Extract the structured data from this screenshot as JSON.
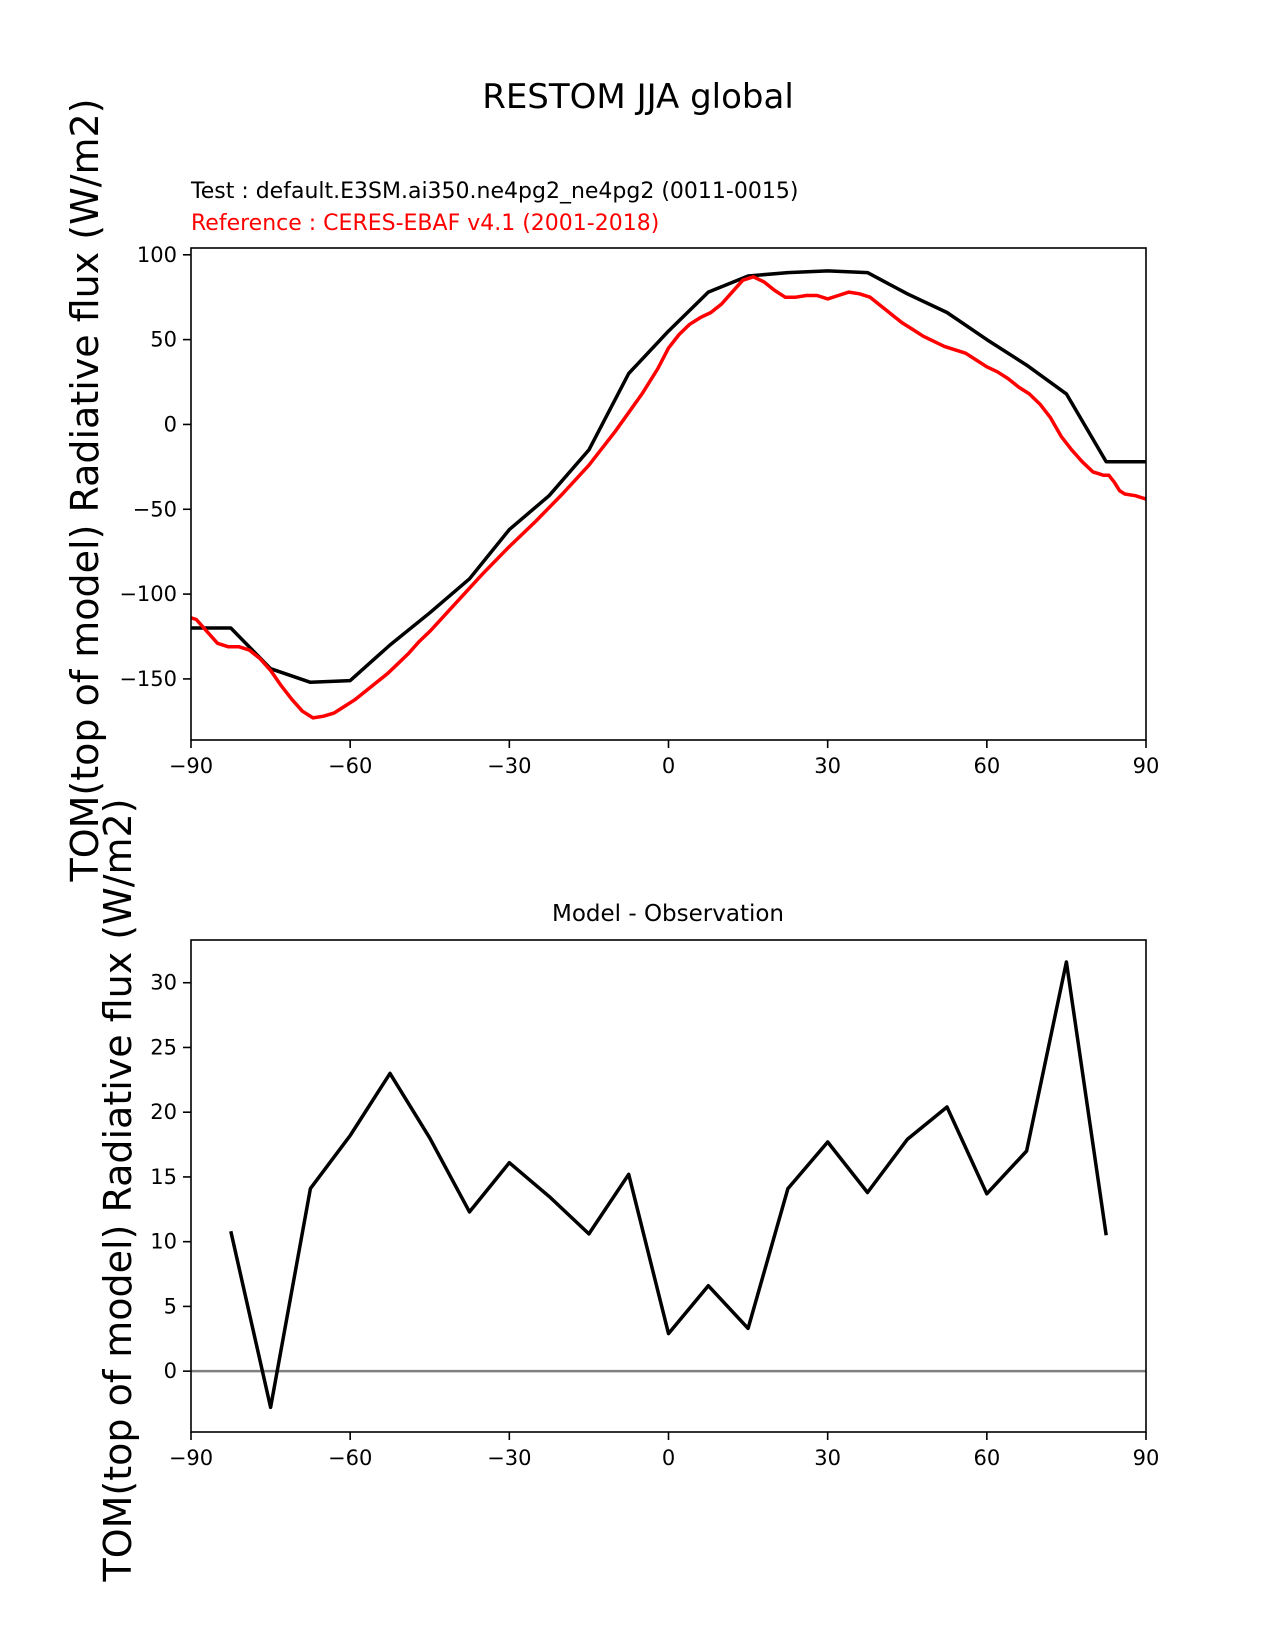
{
  "figure": {
    "title": "RESTOM JJA global"
  },
  "chart_data": [
    {
      "type": "line",
      "test_label": "Test : default.E3SM.ai350.ne4pg2_ne4pg2 (0011-0015)",
      "reference_label": "Reference : CERES-EBAF v4.1 (2001-2018)",
      "ylabel": "TOM(top of model) Radiative flux (W/m2)",
      "xlim": [
        -90,
        90
      ],
      "ylim": [
        -186,
        104
      ],
      "xticks": [
        -90,
        -60,
        -30,
        0,
        30,
        60,
        90
      ],
      "yticks": [
        100,
        50,
        0,
        -50,
        -100,
        -150
      ],
      "grid": false,
      "colors": {
        "test": "#000000",
        "reference": "#ff0000"
      },
      "series": [
        {
          "role": "test",
          "x": [
            -90,
            -82.5,
            -75,
            -67.5,
            -60,
            -52.5,
            -45,
            -37.5,
            -30,
            -22.5,
            -15,
            -7.5,
            0,
            7.5,
            15,
            22.5,
            30,
            37.5,
            45,
            52.5,
            60,
            67.5,
            75,
            82.5,
            90
          ],
          "y": [
            -120,
            -120,
            -144,
            -152,
            -151,
            -130,
            -111,
            -91,
            -62,
            -42,
            -15,
            30,
            55,
            78,
            87.5,
            89.5,
            90.5,
            89.5,
            77,
            66,
            50,
            35,
            18,
            -22,
            -22
          ]
        },
        {
          "role": "reference",
          "x": [
            -90,
            -89,
            -87,
            -85,
            -83,
            -81,
            -79,
            -77,
            -75,
            -73,
            -71,
            -69,
            -67,
            -65,
            -63,
            -61,
            -59,
            -57,
            -55,
            -53,
            -51,
            -49,
            -47,
            -45,
            -40,
            -35,
            -30,
            -25,
            -20,
            -15,
            -10,
            -5,
            -2,
            0,
            2,
            4,
            6,
            8,
            10,
            12,
            14,
            16,
            18,
            20,
            22,
            24,
            26,
            28,
            30,
            32,
            34,
            36,
            38,
            40,
            42,
            44,
            46,
            48,
            50,
            52,
            54,
            56,
            58,
            60,
            62,
            64,
            66,
            68,
            70,
            72,
            74,
            76,
            78,
            80,
            81,
            82,
            83,
            84,
            85,
            86,
            88,
            90
          ],
          "y": [
            -114,
            -115,
            -122,
            -129,
            -131,
            -131,
            -133,
            -138,
            -145,
            -154,
            -162,
            -169,
            -173,
            -172,
            -170,
            -166,
            -162,
            -157,
            -152,
            -147,
            -141,
            -135,
            -128,
            -122,
            -105,
            -88,
            -72,
            -57,
            -41,
            -24,
            -4,
            18,
            33,
            45,
            53,
            59,
            63,
            66,
            71,
            78,
            85,
            87,
            84,
            79,
            75,
            75,
            76,
            76,
            74,
            76,
            78,
            77,
            75,
            70,
            65,
            60,
            56,
            52,
            49,
            46,
            44,
            42,
            38,
            34,
            31,
            27,
            22,
            18,
            12,
            4,
            -7,
            -15,
            -22,
            -28,
            -29,
            -30,
            -30,
            -34,
            -39,
            -41,
            -42,
            -44
          ]
        }
      ]
    },
    {
      "type": "line",
      "title": "Model - Observation",
      "ylabel": "TOM(top of model) Radiative flux (W/m2)",
      "xlim": [
        -90,
        90
      ],
      "ylim": [
        -4.7,
        33.3
      ],
      "xticks": [
        -90,
        -60,
        -30,
        0,
        30,
        60,
        90
      ],
      "yticks": [
        30,
        25,
        20,
        15,
        10,
        5,
        0
      ],
      "grid": false,
      "colors": {
        "diff": "#000000",
        "zero_line": "#808080"
      },
      "zero_line": 0,
      "series": [
        {
          "role": "difference",
          "x": [
            -82.5,
            -75,
            -67.5,
            -60,
            -52.5,
            -45,
            -37.5,
            -30,
            -22.5,
            -15,
            -7.5,
            0,
            7.5,
            15,
            22.5,
            30,
            37.5,
            45,
            52.5,
            60,
            67.5,
            75,
            82.5
          ],
          "y": [
            10.8,
            -2.8,
            14.1,
            18.2,
            23.0,
            18.0,
            12.3,
            16.1,
            13.5,
            10.6,
            15.2,
            2.9,
            6.6,
            3.3,
            14.1,
            17.7,
            13.8,
            17.9,
            20.4,
            13.7,
            17.0,
            31.6,
            10.5
          ]
        }
      ]
    }
  ]
}
